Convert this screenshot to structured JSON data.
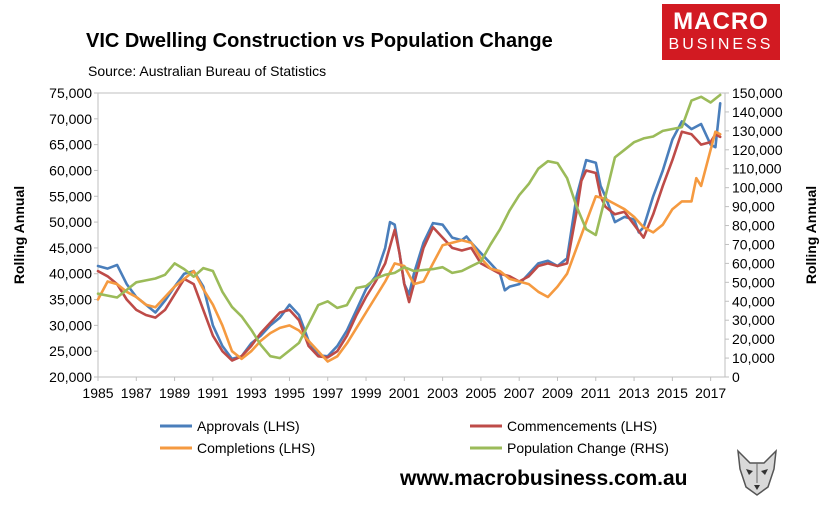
{
  "chart_data": {
    "type": "line",
    "title": "VIC Dwelling Construction vs Population Change",
    "subtitle": "Source: Australian Bureau of Statistics",
    "ylabel_left": "Rolling Annual",
    "ylabel_right": "Rolling Annual",
    "xlim": [
      1985,
      2017.75
    ],
    "ylim_left": [
      20000,
      75000
    ],
    "ylim_right": [
      0,
      150000
    ],
    "x_ticks": [
      1985,
      1987,
      1989,
      1991,
      1993,
      1995,
      1997,
      1999,
      2001,
      2003,
      2005,
      2007,
      2009,
      2011,
      2013,
      2015,
      2017
    ],
    "y_ticks_left": [
      "20,000",
      "25,000",
      "30,000",
      "35,000",
      "40,000",
      "45,000",
      "50,000",
      "55,000",
      "60,000",
      "65,000",
      "70,000",
      "75,000"
    ],
    "y_ticks_right": [
      "0",
      "10,000",
      "20,000",
      "30,000",
      "40,000",
      "50,000",
      "60,000",
      "70,000",
      "80,000",
      "90,000",
      "100,000",
      "110,000",
      "120,000",
      "130,000",
      "140,000",
      "150,000"
    ],
    "grid": false,
    "legend_position": "bottom",
    "series": [
      {
        "name": "Approvals (LHS)",
        "color": "#4a7ebb",
        "axis": "left",
        "points": [
          [
            1985,
            41500
          ],
          [
            1985.5,
            41000
          ],
          [
            1986,
            41700
          ],
          [
            1986.5,
            38000
          ],
          [
            1987,
            35500
          ],
          [
            1987.5,
            34000
          ],
          [
            1988,
            32500
          ],
          [
            1988.5,
            34800
          ],
          [
            1989,
            37500
          ],
          [
            1989.5,
            40000
          ],
          [
            1990,
            40500
          ],
          [
            1990.5,
            37500
          ],
          [
            1991,
            30000
          ],
          [
            1991.5,
            26000
          ],
          [
            1992,
            23500
          ],
          [
            1992.5,
            24000
          ],
          [
            1993,
            26500
          ],
          [
            1993.5,
            28000
          ],
          [
            1994,
            30000
          ],
          [
            1994.5,
            31500
          ],
          [
            1995,
            34000
          ],
          [
            1995.5,
            32000
          ],
          [
            1996,
            27000
          ],
          [
            1996.5,
            24200
          ],
          [
            1997,
            24000
          ],
          [
            1997.5,
            26000
          ],
          [
            1998,
            29000
          ],
          [
            1998.5,
            33000
          ],
          [
            1999,
            37000
          ],
          [
            1999.5,
            39500
          ],
          [
            2000,
            45000
          ],
          [
            2000.25,
            50000
          ],
          [
            2000.5,
            49500
          ],
          [
            2000.75,
            44000
          ],
          [
            2001,
            38000
          ],
          [
            2001.25,
            36000
          ],
          [
            2001.5,
            40000
          ],
          [
            2002,
            46000
          ],
          [
            2002.5,
            49800
          ],
          [
            2003,
            49500
          ],
          [
            2003.5,
            47000
          ],
          [
            2004,
            46500
          ],
          [
            2004.25,
            47200
          ],
          [
            2004.5,
            46000
          ],
          [
            2005,
            44000
          ],
          [
            2005.5,
            42000
          ],
          [
            2006,
            40000
          ],
          [
            2006.25,
            36800
          ],
          [
            2006.5,
            37500
          ],
          [
            2007,
            38000
          ],
          [
            2007.5,
            40000
          ],
          [
            2008,
            42000
          ],
          [
            2008.5,
            42500
          ],
          [
            2009,
            41500
          ],
          [
            2009.5,
            43000
          ],
          [
            2010,
            55000
          ],
          [
            2010.5,
            62000
          ],
          [
            2011,
            61500
          ],
          [
            2011.25,
            57000
          ],
          [
            2011.5,
            55000
          ],
          [
            2012,
            50000
          ],
          [
            2012.5,
            51000
          ],
          [
            2013,
            50500
          ],
          [
            2013.25,
            48000
          ],
          [
            2013.5,
            49000
          ],
          [
            2014,
            55000
          ],
          [
            2014.5,
            60000
          ],
          [
            2015,
            66000
          ],
          [
            2015.5,
            69500
          ],
          [
            2016,
            68000
          ],
          [
            2016.5,
            69000
          ],
          [
            2017,
            65000
          ],
          [
            2017.25,
            64500
          ],
          [
            2017.5,
            73000
          ]
        ]
      },
      {
        "name": "Commencements (LHS)",
        "color": "#be4b48",
        "axis": "left",
        "points": [
          [
            1985,
            40500
          ],
          [
            1985.5,
            39500
          ],
          [
            1986,
            38000
          ],
          [
            1986.5,
            35000
          ],
          [
            1987,
            33000
          ],
          [
            1987.5,
            32000
          ],
          [
            1988,
            31500
          ],
          [
            1988.5,
            33000
          ],
          [
            1989,
            36000
          ],
          [
            1989.5,
            39000
          ],
          [
            1990,
            38000
          ],
          [
            1990.5,
            33000
          ],
          [
            1991,
            28000
          ],
          [
            1991.5,
            25000
          ],
          [
            1992,
            23200
          ],
          [
            1992.5,
            24000
          ],
          [
            1993,
            26000
          ],
          [
            1993.5,
            28500
          ],
          [
            1994,
            30500
          ],
          [
            1994.5,
            32500
          ],
          [
            1995,
            33000
          ],
          [
            1995.5,
            31000
          ],
          [
            1996,
            26000
          ],
          [
            1996.5,
            24000
          ],
          [
            1997,
            23800
          ],
          [
            1997.5,
            25000
          ],
          [
            1998,
            28000
          ],
          [
            1998.5,
            32000
          ],
          [
            1999,
            35500
          ],
          [
            1999.5,
            38500
          ],
          [
            2000,
            42000
          ],
          [
            2000.5,
            48500
          ],
          [
            2000.75,
            44000
          ],
          [
            2001,
            38000
          ],
          [
            2001.25,
            34500
          ],
          [
            2001.5,
            38000
          ],
          [
            2002,
            45000
          ],
          [
            2002.5,
            49000
          ],
          [
            2003,
            47000
          ],
          [
            2003.5,
            45000
          ],
          [
            2004,
            44500
          ],
          [
            2004.5,
            45000
          ],
          [
            2005,
            42000
          ],
          [
            2005.5,
            41000
          ],
          [
            2006,
            40000
          ],
          [
            2006.5,
            39500
          ],
          [
            2007,
            38500
          ],
          [
            2007.5,
            39500
          ],
          [
            2008,
            41500
          ],
          [
            2008.5,
            42000
          ],
          [
            2009,
            41500
          ],
          [
            2009.5,
            42000
          ],
          [
            2010,
            52000
          ],
          [
            2010.25,
            58000
          ],
          [
            2010.5,
            60000
          ],
          [
            2011,
            59500
          ],
          [
            2011.25,
            55000
          ],
          [
            2011.5,
            53000
          ],
          [
            2012,
            51500
          ],
          [
            2012.5,
            52000
          ],
          [
            2013,
            49500
          ],
          [
            2013.5,
            47000
          ],
          [
            2014,
            51500
          ],
          [
            2014.5,
            57000
          ],
          [
            2015,
            62000
          ],
          [
            2015.5,
            67500
          ],
          [
            2016,
            67000
          ],
          [
            2016.5,
            65000
          ],
          [
            2017,
            65500
          ],
          [
            2017.25,
            67000
          ],
          [
            2017.5,
            66500
          ]
        ]
      },
      {
        "name": "Completions (LHS)",
        "color": "#f59a40",
        "axis": "left",
        "points": [
          [
            1985,
            35000
          ],
          [
            1985.5,
            38500
          ],
          [
            1986,
            38000
          ],
          [
            1986.5,
            36500
          ],
          [
            1987,
            35500
          ],
          [
            1987.5,
            34000
          ],
          [
            1988,
            33500
          ],
          [
            1988.5,
            35500
          ],
          [
            1989,
            37500
          ],
          [
            1989.5,
            39000
          ],
          [
            1990,
            40500
          ],
          [
            1990.5,
            37000
          ],
          [
            1991,
            34000
          ],
          [
            1991.5,
            30000
          ],
          [
            1992,
            25000
          ],
          [
            1992.5,
            23500
          ],
          [
            1993,
            25000
          ],
          [
            1993.5,
            27000
          ],
          [
            1994,
            28500
          ],
          [
            1994.5,
            29500
          ],
          [
            1995,
            30000
          ],
          [
            1995.5,
            29000
          ],
          [
            1996,
            27000
          ],
          [
            1996.5,
            25000
          ],
          [
            1997,
            23000
          ],
          [
            1997.5,
            24000
          ],
          [
            1998,
            26500
          ],
          [
            1998.5,
            29500
          ],
          [
            1999,
            32500
          ],
          [
            1999.5,
            35500
          ],
          [
            2000,
            38500
          ],
          [
            2000.5,
            42000
          ],
          [
            2001,
            41500
          ],
          [
            2001.5,
            38000
          ],
          [
            2002,
            38500
          ],
          [
            2002.5,
            42000
          ],
          [
            2003,
            45500
          ],
          [
            2003.5,
            46000
          ],
          [
            2004,
            46500
          ],
          [
            2004.5,
            46000
          ],
          [
            2005,
            43000
          ],
          [
            2005.5,
            41000
          ],
          [
            2006,
            40500
          ],
          [
            2006.5,
            39000
          ],
          [
            2007,
            38500
          ],
          [
            2007.5,
            38000
          ],
          [
            2008,
            36500
          ],
          [
            2008.5,
            35500
          ],
          [
            2009,
            37500
          ],
          [
            2009.5,
            40000
          ],
          [
            2010,
            45000
          ],
          [
            2010.5,
            50000
          ],
          [
            2011,
            55000
          ],
          [
            2011.5,
            54500
          ],
          [
            2012,
            53500
          ],
          [
            2012.5,
            52500
          ],
          [
            2013,
            51000
          ],
          [
            2013.5,
            49000
          ],
          [
            2014,
            48000
          ],
          [
            2014.5,
            49500
          ],
          [
            2015,
            52500
          ],
          [
            2015.5,
            54000
          ],
          [
            2016,
            54000
          ],
          [
            2016.25,
            58500
          ],
          [
            2016.5,
            57000
          ],
          [
            2017,
            64000
          ],
          [
            2017.25,
            67500
          ],
          [
            2017.5,
            67000
          ]
        ]
      },
      {
        "name": "Population Change (RHS)",
        "color": "#9bbb59",
        "axis": "right",
        "points": [
          [
            1985,
            44000
          ],
          [
            1985.5,
            43000
          ],
          [
            1986,
            42000
          ],
          [
            1986.5,
            46000
          ],
          [
            1987,
            50000
          ],
          [
            1987.5,
            51000
          ],
          [
            1988,
            52000
          ],
          [
            1988.5,
            54000
          ],
          [
            1989,
            60000
          ],
          [
            1989.5,
            57000
          ],
          [
            1990,
            53000
          ],
          [
            1990.5,
            57500
          ],
          [
            1991,
            56000
          ],
          [
            1991.5,
            45000
          ],
          [
            1992,
            37000
          ],
          [
            1992.5,
            32000
          ],
          [
            1993,
            25000
          ],
          [
            1993.5,
            17000
          ],
          [
            1994,
            11000
          ],
          [
            1994.5,
            10000
          ],
          [
            1995,
            14000
          ],
          [
            1995.5,
            18000
          ],
          [
            1996,
            28000
          ],
          [
            1996.5,
            38000
          ],
          [
            1997,
            40000
          ],
          [
            1997.5,
            36500
          ],
          [
            1998,
            38000
          ],
          [
            1998.5,
            47000
          ],
          [
            1999,
            48000
          ],
          [
            1999.5,
            52000
          ],
          [
            2000,
            54000
          ],
          [
            2000.5,
            55000
          ],
          [
            2001,
            58000
          ],
          [
            2001.5,
            56000
          ],
          [
            2002,
            56500
          ],
          [
            2002.5,
            57000
          ],
          [
            2003,
            58000
          ],
          [
            2003.5,
            55000
          ],
          [
            2004,
            56000
          ],
          [
            2004.5,
            58500
          ],
          [
            2005,
            61000
          ],
          [
            2005.5,
            70000
          ],
          [
            2006,
            78000
          ],
          [
            2006.5,
            88000
          ],
          [
            2007,
            96000
          ],
          [
            2007.5,
            102000
          ],
          [
            2008,
            110000
          ],
          [
            2008.5,
            114000
          ],
          [
            2009,
            113000
          ],
          [
            2009.5,
            105000
          ],
          [
            2010,
            90000
          ],
          [
            2010.5,
            78000
          ],
          [
            2011,
            75000
          ],
          [
            2011.5,
            95000
          ],
          [
            2012,
            116000
          ],
          [
            2012.5,
            120000
          ],
          [
            2013,
            124000
          ],
          [
            2013.5,
            126000
          ],
          [
            2014,
            127000
          ],
          [
            2014.5,
            130000
          ],
          [
            2015,
            131000
          ],
          [
            2015.5,
            132000
          ],
          [
            2016,
            146000
          ],
          [
            2016.5,
            148000
          ],
          [
            2017,
            145000
          ],
          [
            2017.5,
            149000
          ]
        ]
      }
    ]
  },
  "logo": {
    "line1": "MACRO",
    "line2": "BUSINESS"
  },
  "website": "www.macrobusiness.com.au"
}
